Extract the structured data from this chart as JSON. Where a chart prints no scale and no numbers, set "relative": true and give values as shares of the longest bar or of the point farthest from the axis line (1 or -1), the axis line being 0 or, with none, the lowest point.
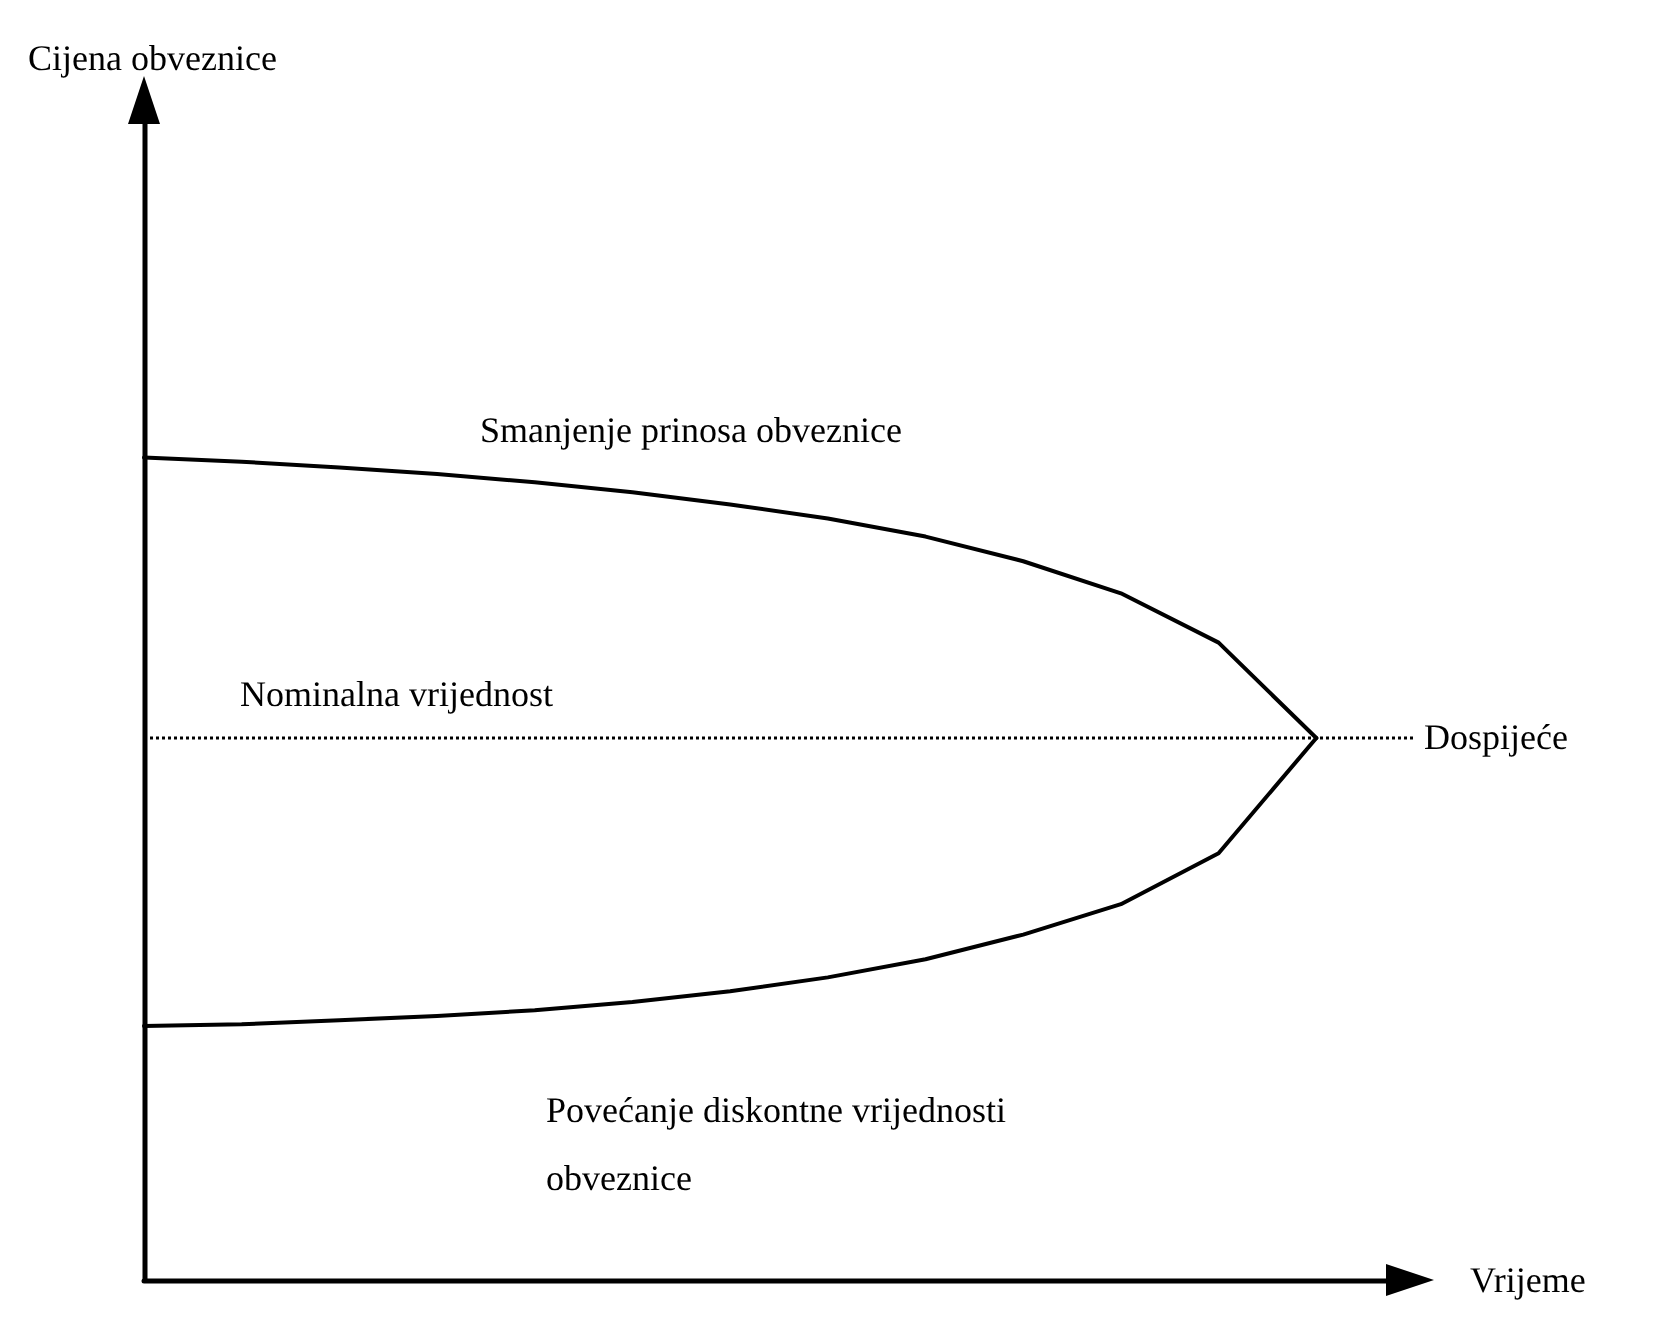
{
  "chart_data": {
    "type": "line",
    "relative": true,
    "xlabel": "Vrijeme",
    "categories": [
      null,
      null,
      null,
      null,
      null,
      null,
      null,
      null,
      null,
      null,
      null,
      null,
      null,
      null
    ],
    "series": [
      {
        "color": "#000000",
        "values": [
          1,
          0.995,
          0.988,
          0.98,
          0.97,
          0.958,
          0.943,
          0.926,
          0.904,
          0.874,
          0.835,
          0.775,
          0.659,
          null
        ]
      },
      {
        "color": "#000000",
        "values": [
          0.309,
          0.311,
          0.316,
          0.321,
          0.328,
          0.338,
          0.351,
          0.368,
          0.39,
          0.42,
          0.457,
          0.519,
          0.659,
          null
        ]
      }
    ],
    "ref_lines": [
      {
        "axis": "y",
        "value": 0.659,
        "label": "Dospijeće",
        "color": "#000000",
        "line_style": "dotted"
      }
    ],
    "annotations": [
      "Smanjenje prinosa obveznice",
      "Nominalna vrijednost",
      "Povećanje diskontne vrijednosti\nobveznice",
      "Cijena obveznice"
    ],
    "grid": false,
    "marker": "none",
    "line_style": "solid"
  }
}
